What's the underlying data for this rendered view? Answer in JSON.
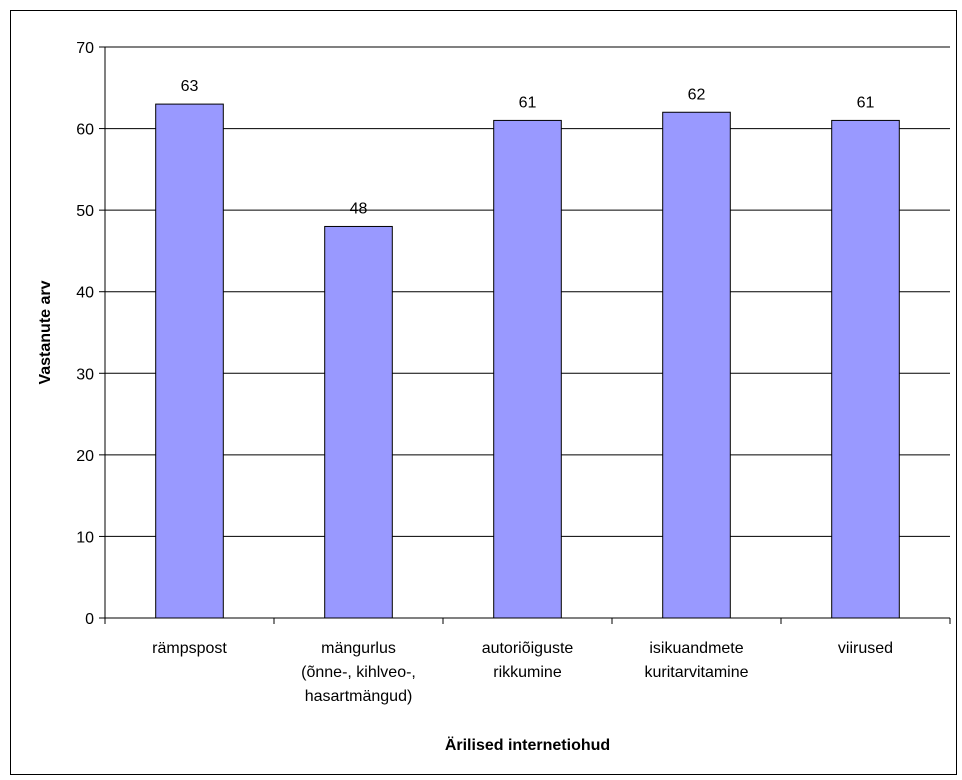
{
  "chart_data": {
    "type": "bar",
    "categories": [
      [
        "rämpspost"
      ],
      [
        "mängurlus",
        "(õnne-, kihlveo-,",
        "hasartmängud)"
      ],
      [
        "autoriõiguste",
        "rikkumine"
      ],
      [
        "isikuandmete",
        "kuritarvitamine"
      ],
      [
        "viirused"
      ]
    ],
    "values": [
      63,
      48,
      61,
      62,
      61
    ],
    "data_labels": [
      "63",
      "48",
      "61",
      "62",
      "61"
    ],
    "title": "",
    "xlabel": "Ärilised internetiohud",
    "ylabel": "Vastanute arv",
    "ylim": [
      0,
      70
    ],
    "yticks": [
      "0",
      "10",
      "20",
      "30",
      "40",
      "50",
      "60",
      "70"
    ],
    "grid": true,
    "legend": "none",
    "colors": {
      "bar_fill": "#9999ff",
      "bar_stroke": "#000000",
      "grid": "#000000"
    }
  }
}
